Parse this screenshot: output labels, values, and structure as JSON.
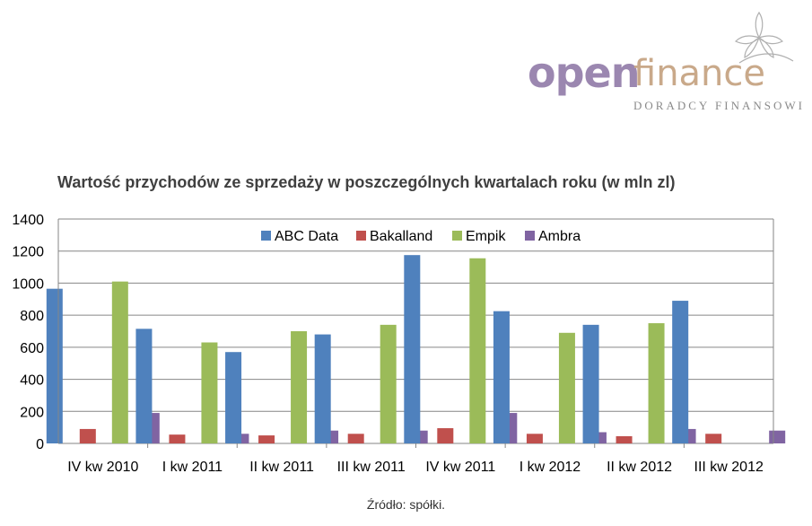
{
  "logo": {
    "word1": "open",
    "word2": "finance",
    "subtitle": "DORADCY FINANSOWI",
    "icon": "flower-icon"
  },
  "chart_data": {
    "type": "bar",
    "title": "Wartość przychodów ze sprzedaży w poszczególnych kwartalach roku (w mln zl)",
    "xlabel": "",
    "ylabel": "",
    "ylim": [
      0,
      1400
    ],
    "yticks": [
      0,
      200,
      400,
      600,
      800,
      1000,
      1200,
      1400
    ],
    "grid": true,
    "legend_position": "top",
    "categories": [
      "IV kw 2010",
      "I kw 2011",
      "II kw 2011",
      "III kw 2011",
      "IV kw 2011",
      "I kw 2012",
      "II kw 2012",
      "III kw 2012"
    ],
    "series": [
      {
        "name": "ABC Data",
        "color": "#4f81bd",
        "values": [
          965,
          715,
          570,
          680,
          1175,
          825,
          740,
          890
        ]
      },
      {
        "name": "Bakalland",
        "color": "#c0504d",
        "values": [
          90,
          55,
          50,
          60,
          95,
          60,
          45,
          60
        ]
      },
      {
        "name": "Empik",
        "color": "#9bbb59",
        "values": [
          1010,
          630,
          700,
          740,
          1155,
          690,
          750,
          null
        ]
      },
      {
        "name": "Ambra",
        "color": "#8064a2",
        "values": [
          190,
          60,
          80,
          80,
          190,
          70,
          90,
          80
        ]
      }
    ]
  },
  "source": "Źródło: spółki."
}
